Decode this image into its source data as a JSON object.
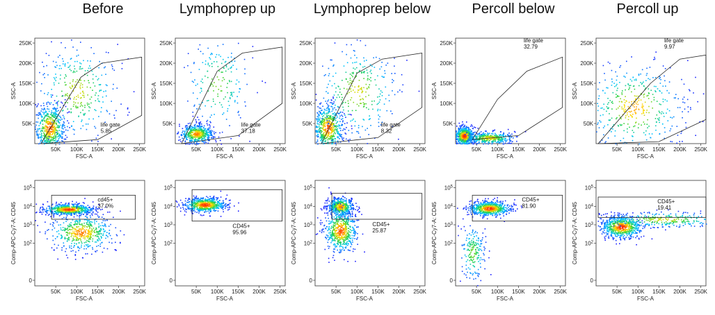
{
  "figure": {
    "columns": [
      {
        "title": "Before"
      },
      {
        "title": "Lymphoprep up"
      },
      {
        "title": "Lymphoprep below"
      },
      {
        "title": "Percoll below"
      },
      {
        "title": "Percoll up"
      }
    ]
  },
  "colors": {
    "density_low": "#1a1aff",
    "density_mid": "#00c8ff",
    "density_high": "#ffdd00",
    "density_peak": "#ff2000",
    "gate_line": "#222222"
  },
  "chart_data": [
    {
      "type": "scatter",
      "panel": "Before-top",
      "xlabel": "FSC-A",
      "ylabel": "SSC-A",
      "xlim": [
        0,
        262144
      ],
      "ylim": [
        0,
        262144
      ],
      "x_ticks": [
        "50K",
        "100K",
        "150K",
        "200K",
        "250K"
      ],
      "y_ticks": [
        "50K",
        "100K",
        "150K",
        "200K",
        "250K"
      ],
      "gate": {
        "name": "life gate",
        "percent": "5.85",
        "polygon": [
          [
            15000,
            0
          ],
          [
            110000,
            165000
          ],
          [
            160000,
            200000
          ],
          [
            255000,
            215000
          ],
          [
            255000,
            70000
          ],
          [
            150000,
            10000
          ]
        ]
      },
      "populations": [
        {
          "cx": 35000,
          "cy": 40000,
          "sx": 18000,
          "sy": 30000,
          "density": 0.9
        },
        {
          "cx": 100000,
          "cy": 130000,
          "sx": 50000,
          "sy": 60000,
          "density": 0.5
        }
      ]
    },
    {
      "type": "scatter",
      "panel": "Lymphoprep up-top",
      "xlabel": "FSC-A",
      "ylabel": "SSC-A",
      "xlim": [
        0,
        262144
      ],
      "ylim": [
        0,
        262144
      ],
      "x_ticks": [
        "50K",
        "100K",
        "150K",
        "200K",
        "250K"
      ],
      "y_ticks": [
        "50K",
        "100K",
        "150K",
        "200K",
        "250K"
      ],
      "gate": {
        "name": "life gate",
        "percent": "37.18",
        "polygon": [
          [
            15000,
            0
          ],
          [
            100000,
            180000
          ],
          [
            160000,
            225000
          ],
          [
            255000,
            240000
          ],
          [
            255000,
            100000
          ],
          [
            150000,
            20000
          ]
        ]
      },
      "populations": [
        {
          "cx": 50000,
          "cy": 25000,
          "sx": 20000,
          "sy": 12000,
          "density": 0.8
        },
        {
          "cx": 100000,
          "cy": 150000,
          "sx": 40000,
          "sy": 60000,
          "density": 0.3
        }
      ]
    },
    {
      "type": "scatter",
      "panel": "Lymphoprep below-top",
      "xlabel": "FSC-A",
      "ylabel": "SSC-A",
      "xlim": [
        0,
        262144
      ],
      "ylim": [
        0,
        262144
      ],
      "x_ticks": [
        "50K",
        "100K",
        "150K",
        "200K",
        "250K"
      ],
      "y_ticks": [
        "50K",
        "100K",
        "150K",
        "200K",
        "250K"
      ],
      "gate": {
        "name": "life gate",
        "percent": "8.32",
        "polygon": [
          [
            15000,
            0
          ],
          [
            100000,
            175000
          ],
          [
            160000,
            210000
          ],
          [
            255000,
            225000
          ],
          [
            255000,
            90000
          ],
          [
            150000,
            15000
          ]
        ]
      },
      "populations": [
        {
          "cx": 30000,
          "cy": 40000,
          "sx": 18000,
          "sy": 30000,
          "density": 0.9
        },
        {
          "cx": 100000,
          "cy": 130000,
          "sx": 50000,
          "sy": 60000,
          "density": 0.5
        }
      ]
    },
    {
      "type": "scatter",
      "panel": "Percoll below-top",
      "xlabel": "FSC-A",
      "ylabel": "SSC-A",
      "xlim": [
        0,
        262144
      ],
      "ylim": [
        0,
        262144
      ],
      "x_ticks": [
        "50K",
        "100K",
        "150K",
        "200K",
        "250K"
      ],
      "y_ticks": [
        "50K",
        "100K",
        "150K",
        "200K",
        "250K"
      ],
      "gate": {
        "name": "life gate",
        "percent": "32.79",
        "polygon": [
          [
            40000,
            10000
          ],
          [
            100000,
            110000
          ],
          [
            170000,
            180000
          ],
          [
            255000,
            215000
          ],
          [
            255000,
            90000
          ],
          [
            150000,
            20000
          ]
        ]
      },
      "populations": [
        {
          "cx": 20000,
          "cy": 20000,
          "sx": 12000,
          "sy": 12000,
          "density": 1.0
        },
        {
          "cx": 80000,
          "cy": 15000,
          "sx": 30000,
          "sy": 8000,
          "density": 0.6
        }
      ]
    },
    {
      "type": "scatter",
      "panel": "Percoll up-top",
      "xlabel": "FSC-A",
      "ylabel": "SSC-A",
      "xlim": [
        0,
        262144
      ],
      "ylim": [
        0,
        262144
      ],
      "x_ticks": [
        "50K",
        "100K",
        "150K",
        "200K",
        "250K"
      ],
      "y_ticks": [
        "50K",
        "100K",
        "150K",
        "200K",
        "250K"
      ],
      "gate": {
        "name": "life gate",
        "percent": "9.97",
        "polygon": [
          [
            5000,
            0
          ],
          [
            130000,
            150000
          ],
          [
            200000,
            210000
          ],
          [
            262000,
            220000
          ],
          [
            262000,
            60000
          ],
          [
            150000,
            5000
          ]
        ]
      },
      "populations": [
        {
          "cx": 90000,
          "cy": 90000,
          "sx": 60000,
          "sy": 55000,
          "density": 0.7
        }
      ]
    },
    {
      "type": "scatter",
      "panel": "Before-bottom",
      "xlabel": "FSC-A",
      "ylabel": "Comp-APC-Cy7-A: CD45",
      "xlim": [
        0,
        262144
      ],
      "ylim": [
        -0.3,
        5.4
      ],
      "y_scale": "log",
      "x_ticks": [
        "50K",
        "100K",
        "150K",
        "200K",
        "250K"
      ],
      "y_ticks": [
        "0",
        "10^2",
        "10^3",
        "10^4",
        "10^5"
      ],
      "gate": {
        "name": "cd45+",
        "percent": "37.0%",
        "rect": [
          [
            40000,
            3.3
          ],
          [
            240000,
            4.6
          ]
        ]
      },
      "populations": [
        {
          "cx": 80000,
          "cy": 3.85,
          "sx": 30000,
          "sy": 0.15,
          "density": 1.0
        },
        {
          "cx": 110000,
          "cy": 2.6,
          "sx": 40000,
          "sy": 0.5,
          "density": 0.8
        }
      ]
    },
    {
      "type": "scatter",
      "panel": "Lymphoprep up-bottom",
      "xlabel": "FSC-A",
      "ylabel": "Comp-APC-Cy7-A: CD45",
      "xlim": [
        0,
        262144
      ],
      "ylim": [
        -0.3,
        5.4
      ],
      "y_scale": "log",
      "x_ticks": [
        "50K",
        "100K",
        "150K",
        "200K",
        "250K"
      ],
      "y_ticks": [
        "0",
        "10^2",
        "10^3",
        "10^4",
        "10^5"
      ],
      "gate": {
        "name": "CD45+",
        "percent": "95.96",
        "rect": [
          [
            40000,
            3.2
          ],
          [
            255000,
            4.9
          ]
        ]
      },
      "populations": [
        {
          "cx": 70000,
          "cy": 4.1,
          "sx": 25000,
          "sy": 0.2,
          "density": 1.0
        }
      ]
    },
    {
      "type": "scatter",
      "panel": "Lymphoprep below-bottom",
      "xlabel": "FSC-A",
      "ylabel": "Comp-APC-Cy7-A: CD45",
      "xlim": [
        0,
        262144
      ],
      "ylim": [
        -0.3,
        5.4
      ],
      "y_scale": "log",
      "x_ticks": [
        "50K",
        "100K",
        "150K",
        "200K",
        "250K"
      ],
      "y_ticks": [
        "0",
        "10^2",
        "10^3",
        "10^4",
        "10^5"
      ],
      "gate": {
        "name": "CD45+",
        "percent": "25.87",
        "rect": [
          [
            40000,
            3.3
          ],
          [
            255000,
            4.7
          ]
        ]
      },
      "populations": [
        {
          "cx": 60000,
          "cy": 4.0,
          "sx": 15000,
          "sy": 0.25,
          "density": 0.8
        },
        {
          "cx": 60000,
          "cy": 2.7,
          "sx": 20000,
          "sy": 0.6,
          "density": 0.9
        }
      ]
    },
    {
      "type": "scatter",
      "panel": "Percoll below-bottom",
      "xlabel": "FSC-A",
      "ylabel": "Comp-APC-Cy7-A: CD45",
      "xlim": [
        0,
        262144
      ],
      "ylim": [
        -0.3,
        5.4
      ],
      "y_scale": "log",
      "x_ticks": [
        "50K",
        "100K",
        "150K",
        "200K",
        "250K"
      ],
      "y_ticks": [
        "0",
        "10^2",
        "10^3",
        "10^4",
        "10^5"
      ],
      "gate": {
        "name": "CD45+",
        "percent": "81.90",
        "rect": [
          [
            40000,
            3.2
          ],
          [
            255000,
            4.6
          ]
        ]
      },
      "populations": [
        {
          "cx": 80000,
          "cy": 3.9,
          "sx": 25000,
          "sy": 0.2,
          "density": 1.0
        },
        {
          "cx": 40000,
          "cy": 1.5,
          "sx": 15000,
          "sy": 0.8,
          "density": 0.3
        }
      ]
    },
    {
      "type": "scatter",
      "panel": "Percoll up-bottom",
      "xlabel": "FSC-A",
      "ylabel": "Comp-APC-Cy7-A: CD45",
      "xlim": [
        0,
        262144
      ],
      "ylim": [
        -0.3,
        5.4
      ],
      "y_scale": "log",
      "x_ticks": [
        "50K",
        "100K",
        "150K",
        "200K",
        "250K"
      ],
      "y_ticks": [
        "0",
        "10^2",
        "10^3",
        "10^4",
        "10^5"
      ],
      "gate": {
        "name": "CD45+",
        "percent": "19.41",
        "rect": [
          [
            5000,
            3.4
          ],
          [
            262000,
            4.5
          ]
        ]
      },
      "populations": [
        {
          "cx": 60000,
          "cy": 2.9,
          "sx": 25000,
          "sy": 0.3,
          "density": 1.0
        },
        {
          "cx": 160000,
          "cy": 3.3,
          "sx": 80000,
          "sy": 0.2,
          "density": 0.5
        }
      ]
    }
  ]
}
